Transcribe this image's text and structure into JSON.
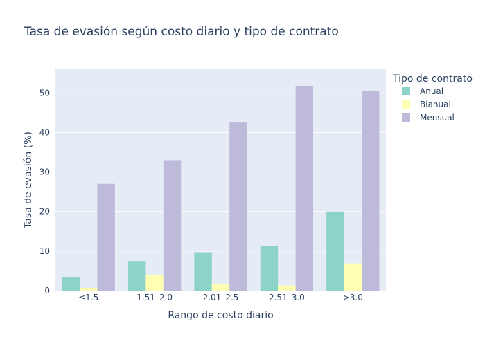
{
  "chart_data": {
    "type": "bar",
    "title": "Tasa de evasión según costo diario y tipo de contrato",
    "xlabel": "Rango de costo diario",
    "ylabel": "Tasa de evasión (%)",
    "ylim": [
      0,
      56
    ],
    "yticks": [
      0,
      10,
      20,
      30,
      40,
      50
    ],
    "grid": true,
    "legend_title": "Tipo de contrato",
    "legend_position": "right",
    "categories": [
      "≤1.5",
      "1.51–2.0",
      "2.01–2.5",
      "2.51–3.0",
      ">3.0"
    ],
    "series": [
      {
        "name": "Anual",
        "color": "#8dd3c7",
        "values": [
          3.4,
          7.5,
          9.7,
          11.3,
          20.0
        ]
      },
      {
        "name": "Bianual",
        "color": "#ffffb3",
        "values": [
          0.7,
          4.0,
          1.6,
          1.3,
          6.9
        ]
      },
      {
        "name": "Mensual",
        "color": "#bebada",
        "values": [
          27.0,
          33.0,
          42.5,
          51.8,
          50.5
        ]
      }
    ]
  }
}
